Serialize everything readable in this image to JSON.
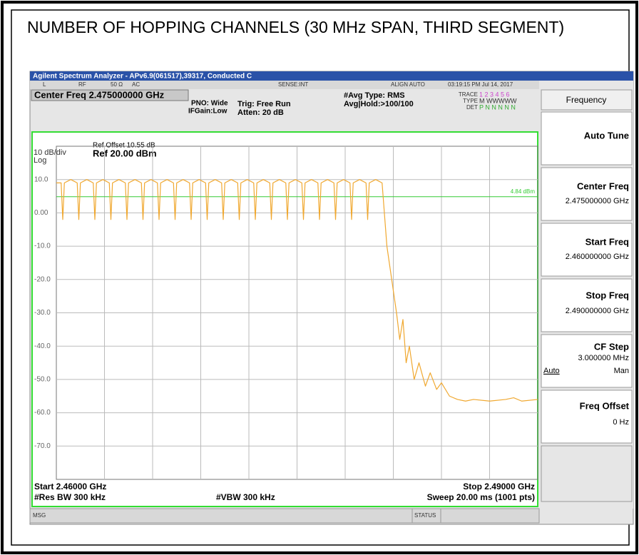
{
  "document": {
    "title": "NUMBER OF HOPPING CHANNELS (30 MHz SPAN, THIRD SEGMENT)"
  },
  "analyzer": {
    "window_title": "Agilent Spectrum Analyzer - APv6.9(061517),39317, Conducted C",
    "status": [
      "L",
      "RF",
      "50 Ω",
      "AC",
      "SENSE:INT",
      "ALIGN AUTO",
      "03:19:15 PM Jul 14, 2017"
    ],
    "center_freq": "Center Freq 2.475000000 GHz",
    "pno": "PNO: Wide",
    "ifgain": "IFGain:Low",
    "trig": "Trig: Free Run",
    "atten": "Atten: 20 dB",
    "avg_type": "#Avg Type: RMS",
    "avg_hold": "Avg|Hold:>100/100",
    "trace_label": "TRACE",
    "trace_vals": "1 2 3 4 5 6",
    "type_label": "TYPE",
    "type_vals": "M WWWWW",
    "det_label": "DET",
    "det_vals": "P N N N N N",
    "ref_offset": "Ref Offset 10.55 dB",
    "scale": "10 dB/div",
    "ref_level": "Ref 20.00 dBm",
    "log": "Log",
    "start": "Start 2.46000 GHz",
    "res_bw": "#Res BW 300 kHz",
    "vbw": "#VBW 300 kHz",
    "stop": "Stop 2.49000 GHz",
    "sweep": "Sweep  20.00 ms (1001 pts)",
    "msg": "MSG",
    "status_label": "STATUS"
  },
  "softkeys": {
    "menu": "Frequency",
    "keys": [
      {
        "label": "Auto Tune"
      },
      {
        "label": "Center Freq",
        "value": "2.475000000 GHz"
      },
      {
        "label": "Start Freq",
        "value": "2.460000000 GHz"
      },
      {
        "label": "Stop Freq",
        "value": "2.490000000 GHz"
      },
      {
        "label": "CF Step",
        "value": "3.000000 MHz",
        "auto": "Auto",
        "man": "Man"
      },
      {
        "label": "Freq Offset",
        "value": "0 Hz"
      }
    ]
  },
  "chart_data": {
    "type": "line",
    "color": "#f0a830",
    "xlim": [
      2.46,
      2.49
    ],
    "ylim": [
      -80,
      20
    ],
    "yticks": [
      {
        "value": 10,
        "label": "10.0"
      },
      {
        "value": 0,
        "label": "0.00"
      },
      {
        "value": -10,
        "label": "-10.0"
      },
      {
        "value": -20,
        "label": "-20.0"
      },
      {
        "value": -30,
        "label": "-30.0"
      },
      {
        "value": -40,
        "label": "-40.0"
      },
      {
        "value": -50,
        "label": "-50.0"
      },
      {
        "value": -60,
        "label": "-60.0"
      },
      {
        "value": -70,
        "label": "-70.0"
      }
    ],
    "grid": true,
    "display_line": 4.84,
    "display_line_label": "4.84 dBm",
    "display_line_color": "#33cc33",
    "x": [
      2.46,
      2.4603,
      2.4604,
      2.4605,
      2.4609,
      2.4613,
      2.4614,
      2.4615,
      2.4619,
      2.4623,
      2.4624,
      2.4625,
      2.4629,
      2.4633,
      2.4634,
      2.4635,
      2.4639,
      2.4643,
      2.4644,
      2.4645,
      2.4649,
      2.4653,
      2.4654,
      2.4655,
      2.4659,
      2.4663,
      2.4664,
      2.4665,
      2.4669,
      2.4673,
      2.4674,
      2.4675,
      2.4679,
      2.4683,
      2.4684,
      2.4685,
      2.4689,
      2.4693,
      2.4694,
      2.4695,
      2.4699,
      2.4703,
      2.4704,
      2.4705,
      2.4709,
      2.4713,
      2.4714,
      2.4715,
      2.4719,
      2.4723,
      2.4724,
      2.4725,
      2.4729,
      2.4733,
      2.4734,
      2.4735,
      2.4739,
      2.4743,
      2.4744,
      2.4745,
      2.4749,
      2.4753,
      2.4754,
      2.4755,
      2.4759,
      2.4763,
      2.4764,
      2.4765,
      2.4769,
      2.4773,
      2.4774,
      2.4775,
      2.4779,
      2.4783,
      2.4784,
      2.4785,
      2.4789,
      2.4793,
      2.4794,
      2.4795,
      2.4799,
      2.4803,
      2.4806,
      2.4809,
      2.4812,
      2.4814,
      2.4816,
      2.4818,
      2.482,
      2.4823,
      2.4826,
      2.483,
      2.4833,
      2.4837,
      2.484,
      2.4845,
      2.485,
      2.4855,
      2.486,
      2.487,
      2.488,
      2.4885,
      2.489,
      2.49
    ],
    "values": [
      9,
      9,
      -2,
      9,
      10,
      9,
      -2,
      9,
      10,
      9,
      -2,
      9,
      10,
      9,
      -2,
      9,
      10,
      9,
      -2,
      9,
      10,
      9,
      -2,
      9,
      10,
      9,
      -2,
      9,
      10,
      9,
      -2,
      9,
      10,
      9,
      -2,
      9,
      10,
      9,
      -2,
      9,
      10,
      9,
      -2,
      9,
      10,
      9,
      -2,
      9,
      10,
      9,
      -2,
      9,
      10,
      9,
      -2,
      9,
      10,
      9,
      -2,
      9,
      10,
      9,
      -2,
      9,
      10,
      9,
      -2,
      9,
      10,
      9,
      -2,
      9,
      10,
      9,
      -2,
      9,
      10,
      9,
      -2,
      9,
      10,
      9,
      -10,
      -20,
      -30,
      -38,
      -32,
      -45,
      -40,
      -50,
      -45,
      -52,
      -48,
      -53,
      -51,
      -55,
      -56,
      -56.5,
      -56,
      -56.5,
      -56,
      -55.5,
      -56.5,
      -56
    ]
  }
}
